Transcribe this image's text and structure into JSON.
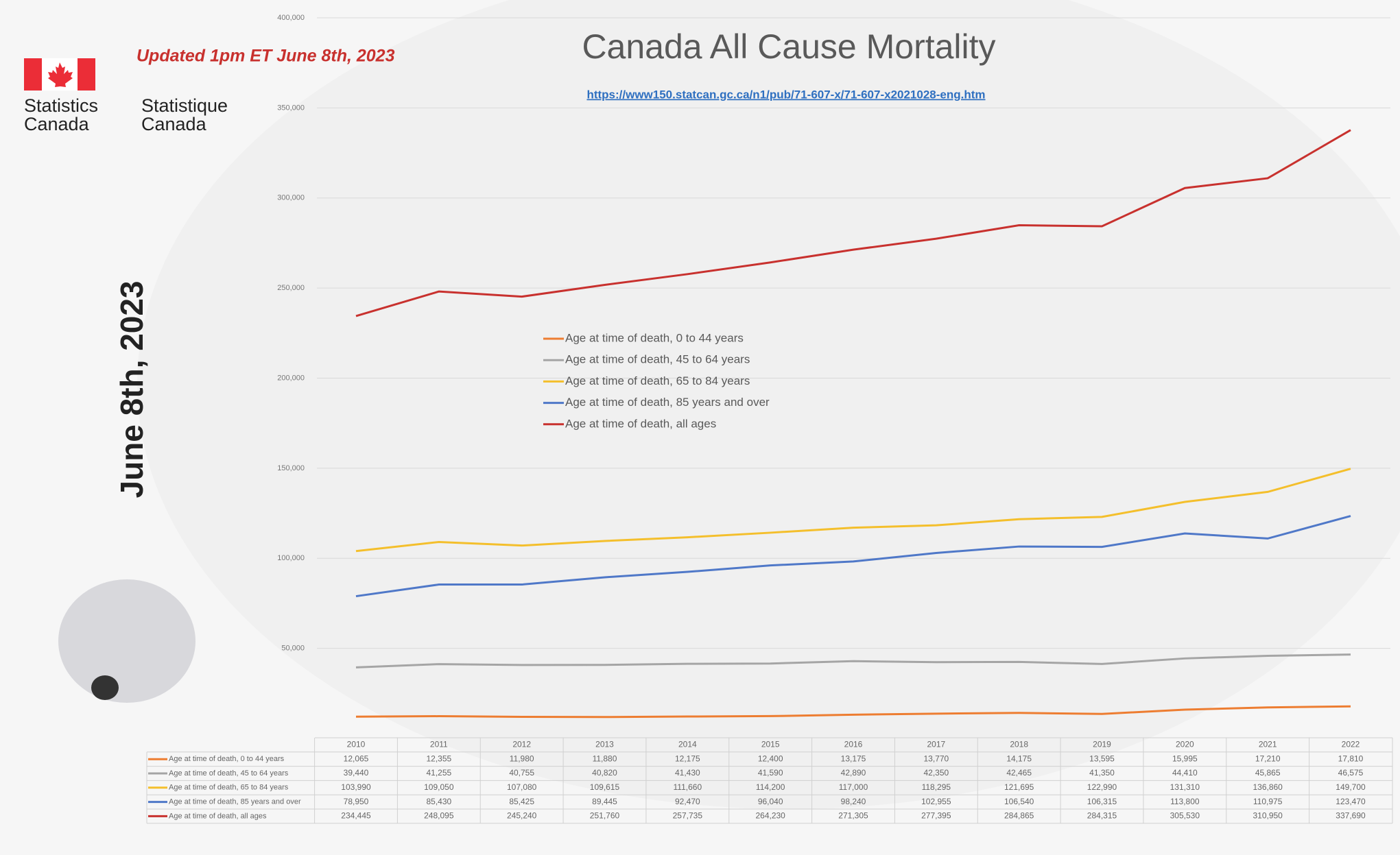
{
  "logo": {
    "english": [
      "Statistics",
      "Canada"
    ],
    "french": [
      "Statistique",
      "Canada"
    ]
  },
  "chart_data": {
    "type": "line",
    "title": "Canada All Cause Mortality",
    "subtitle": "https://www150.statcan.gc.ca/n1/pub/71-607-x/71-607-x2021028-eng.htm",
    "annotations": [
      "Updated 1pm ET June 8th, 2023",
      "June 8th, 2023"
    ],
    "categories": [
      "2010",
      "2011",
      "2012",
      "2013",
      "2014",
      "2015",
      "2016",
      "2017",
      "2018",
      "2019",
      "2020",
      "2021",
      "2022"
    ],
    "ylim": [
      0,
      400000
    ],
    "yticks": [
      {
        "value": 50000,
        "label": "50,000"
      },
      {
        "value": 100000,
        "label": "100,000"
      },
      {
        "value": 150000,
        "label": "150,000"
      },
      {
        "value": 200000,
        "label": "200,000"
      },
      {
        "value": 250000,
        "label": "250,000"
      },
      {
        "value": 300000,
        "label": "300,000"
      },
      {
        "value": 350000,
        "label": "350,000"
      },
      {
        "value": 400000,
        "label": "400,000"
      }
    ],
    "grid": true,
    "series": [
      {
        "name": "Age at time of death, 0 to 44 years",
        "color": "#ed7d31",
        "values": [
          12065,
          12355,
          11980,
          11880,
          12175,
          12400,
          13175,
          13770,
          14175,
          13595,
          15995,
          17210,
          17810
        ],
        "value_labels": [
          "12,065",
          "12,355",
          "11,980",
          "11,880",
          "12,175",
          "12,400",
          "13,175",
          "13,770",
          "14,175",
          "13,595",
          "15,995",
          "17,210",
          "17,810"
        ]
      },
      {
        "name": "Age at time of death, 45 to 64 years",
        "color": "#a5a5a5",
        "values": [
          39440,
          41255,
          40755,
          40820,
          41430,
          41590,
          42890,
          42350,
          42465,
          41350,
          44410,
          45865,
          46575
        ],
        "value_labels": [
          "39,440",
          "41,255",
          "40,755",
          "40,820",
          "41,430",
          "41,590",
          "42,890",
          "42,350",
          "42,465",
          "41,350",
          "44,410",
          "45,865",
          "46,575"
        ]
      },
      {
        "name": "Age at time of death, 65 to 84 years",
        "color": "#f4bf2c",
        "values": [
          103990,
          109050,
          107080,
          109615,
          111660,
          114200,
          117000,
          118295,
          121695,
          122990,
          131310,
          136860,
          149700
        ],
        "value_labels": [
          "103,990",
          "109,050",
          "107,080",
          "109,615",
          "111,660",
          "114,200",
          "117,000",
          "118,295",
          "121,695",
          "122,990",
          "131,310",
          "136,860",
          "149,700"
        ]
      },
      {
        "name": "Age at time of death, 85 years and over",
        "color": "#4f78c8",
        "values": [
          78950,
          85430,
          85425,
          89445,
          92470,
          96040,
          98240,
          102955,
          106540,
          106315,
          113800,
          110975,
          123470
        ],
        "value_labels": [
          "78,950",
          "85,430",
          "85,425",
          "89,445",
          "92,470",
          "96,040",
          "98,240",
          "102,955",
          "106,540",
          "106,315",
          "113,800",
          "110,975",
          "123,470"
        ]
      },
      {
        "name": "Age at time of death, all ages",
        "color": "#c8312e",
        "values": [
          234445,
          248095,
          245240,
          251760,
          257735,
          264230,
          271305,
          277395,
          284865,
          284315,
          305530,
          310950,
          337690
        ],
        "value_labels": [
          "234,445",
          "248,095",
          "245,240",
          "251,760",
          "257,735",
          "264,230",
          "271,305",
          "277,395",
          "284,865",
          "284,315",
          "305,530",
          "310,950",
          "337,690"
        ]
      }
    ]
  }
}
